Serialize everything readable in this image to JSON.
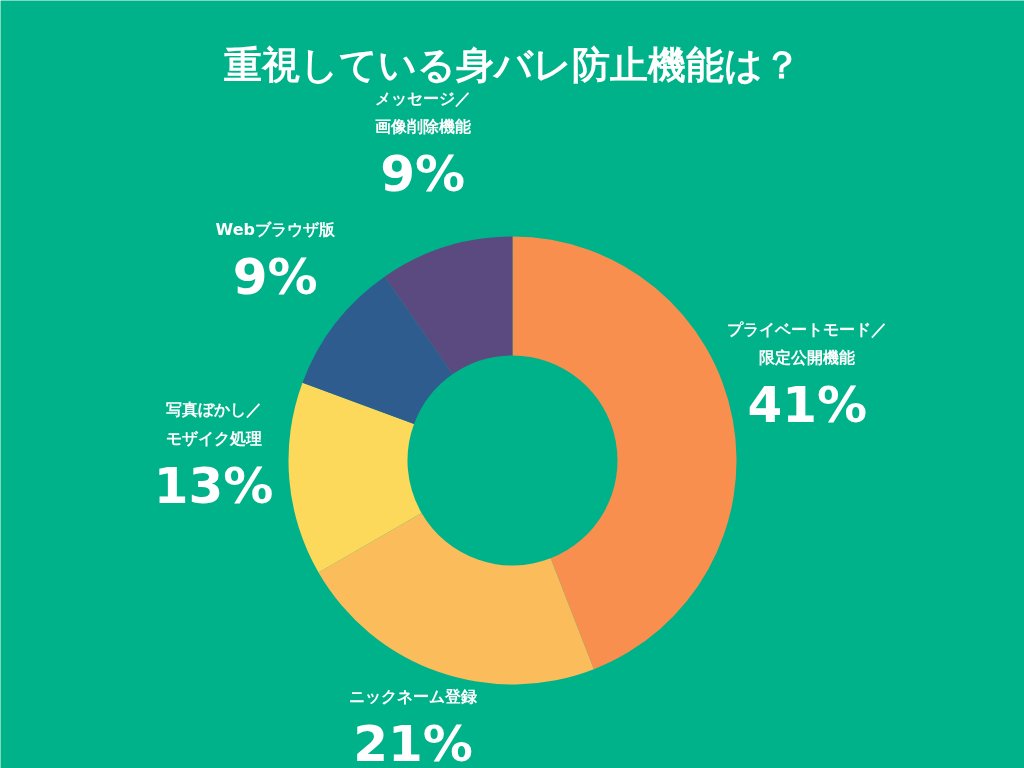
{
  "chart_data": {
    "type": "donut",
    "title": "重視している身バレ防止機能は？",
    "categories": [
      "プライベートモード／限定公開機能",
      "ニックネーム登録",
      "写真ぼかし／モザイク処理",
      "Webブラウザ版",
      "メッセージ／画像削除機能"
    ],
    "values": [
      41,
      21,
      13,
      9,
      9
    ],
    "colors": [
      "#f98f4f",
      "#fbbd5c",
      "#fcd95a",
      "#2e5c8f",
      "#5a4a80"
    ],
    "value_labels": [
      "41%",
      "21%",
      "13%",
      "9%",
      "9%"
    ]
  }
}
